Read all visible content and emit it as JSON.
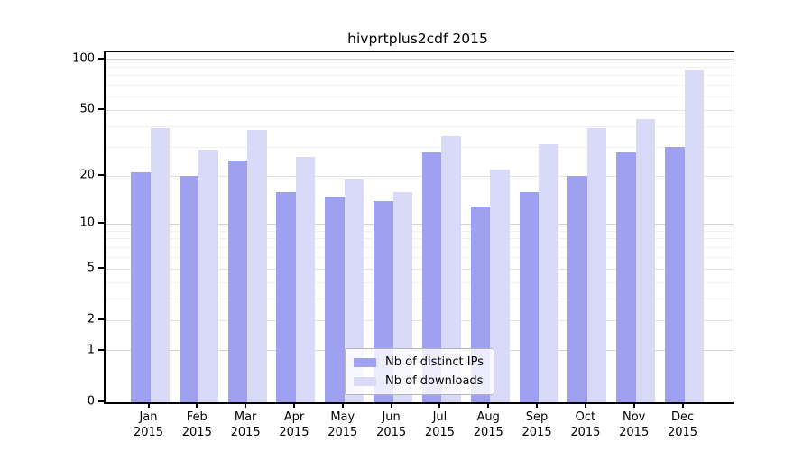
{
  "chart_data": {
    "type": "bar",
    "title": "hivprtplus2cdf 2015",
    "scale": "log1p",
    "grid": "horizontal",
    "legend_position": "bottom-center",
    "year": "2015",
    "categories": [
      "Jan",
      "Feb",
      "Mar",
      "Apr",
      "May",
      "Jun",
      "Jul",
      "Aug",
      "Sep",
      "Oct",
      "Nov",
      "Dec"
    ],
    "series": [
      {
        "name": "Nb of distinct IPs",
        "color": "#a0a0f0",
        "values": [
          21,
          20,
          25,
          16,
          15,
          14,
          28,
          13,
          16,
          20,
          28,
          30
        ]
      },
      {
        "name": "Nb of downloads",
        "color": "#d9d9f8",
        "values": [
          39,
          29,
          38,
          26,
          19,
          16,
          35,
          22,
          31,
          39,
          44,
          86
        ]
      }
    ],
    "y_ticks": [
      0,
      1,
      2,
      5,
      10,
      20,
      50,
      100
    ],
    "y_decade_ticks": [
      1,
      10,
      100
    ],
    "y_minor_gridlines": [
      3,
      4,
      6,
      7,
      8,
      9,
      30,
      40,
      60,
      70,
      80,
      90
    ],
    "ylim": [
      0,
      110
    ],
    "axis_color": "#000000",
    "tick_label_color": "#000000"
  }
}
